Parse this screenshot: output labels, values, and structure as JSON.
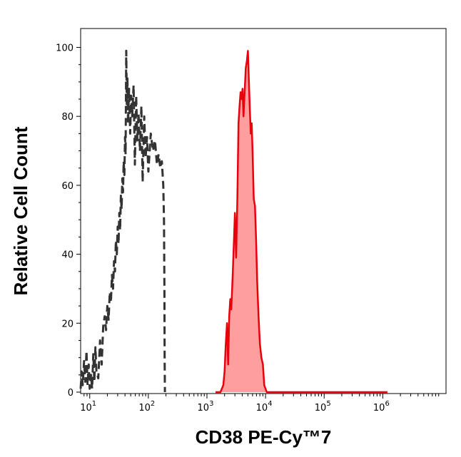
{
  "chart_data": {
    "type": "area",
    "xlabel": "CD38 PE-Cy™7",
    "ylabel": "Relative Cell Count",
    "x_scale": "log",
    "xlim": [
      7,
      12000000
    ],
    "ylim": [
      0,
      103
    ],
    "x_ticks": [
      {
        "value": 10,
        "base": "10",
        "exp": "1"
      },
      {
        "value": 100,
        "base": "10",
        "exp": "2"
      },
      {
        "value": 1000,
        "base": "10",
        "exp": "3"
      },
      {
        "value": 10000,
        "base": "10",
        "exp": "4"
      },
      {
        "value": 100000,
        "base": "10",
        "exp": "5"
      },
      {
        "value": 1000000,
        "base": "10",
        "exp": "6"
      }
    ],
    "y_ticks": [
      "0",
      "20",
      "40",
      "60",
      "80",
      "100"
    ],
    "y_tick_values": [
      0,
      20,
      40,
      60,
      80,
      100
    ],
    "grid": false,
    "legend": "none",
    "series": [
      {
        "style": "dashed",
        "color": "#333333",
        "points": [
          [
            7,
            1
          ],
          [
            7.3,
            6
          ],
          [
            7.6,
            2
          ],
          [
            8,
            9
          ],
          [
            8.4,
            3
          ],
          [
            8.8,
            12
          ],
          [
            9.2,
            2
          ],
          [
            9.6,
            8
          ],
          [
            10,
            1
          ],
          [
            10.5,
            5
          ],
          [
            11,
            1
          ],
          [
            11.5,
            11
          ],
          [
            12,
            3
          ],
          [
            12.5,
            13
          ],
          [
            13,
            6
          ],
          [
            14,
            4
          ],
          [
            15,
            15
          ],
          [
            16,
            8
          ],
          [
            17,
            19
          ],
          [
            18,
            22
          ],
          [
            19,
            18
          ],
          [
            20,
            25
          ],
          [
            21,
            21
          ],
          [
            22,
            29
          ],
          [
            23,
            26
          ],
          [
            24,
            34
          ],
          [
            25,
            30
          ],
          [
            26,
            38
          ],
          [
            27,
            35
          ],
          [
            28,
            44
          ],
          [
            29,
            40
          ],
          [
            30,
            48
          ],
          [
            31,
            43
          ],
          [
            32,
            52
          ],
          [
            33,
            47
          ],
          [
            34,
            57
          ],
          [
            35,
            53
          ],
          [
            36,
            62
          ],
          [
            37,
            58
          ],
          [
            38,
            67
          ],
          [
            39,
            63
          ],
          [
            40,
            74
          ],
          [
            41,
            69
          ],
          [
            42,
            99
          ],
          [
            43,
            83
          ],
          [
            44,
            91
          ],
          [
            45,
            78
          ],
          [
            47,
            88
          ],
          [
            49,
            75
          ],
          [
            51,
            86
          ],
          [
            53,
            80
          ],
          [
            56,
            89
          ],
          [
            59,
            66
          ],
          [
            62,
            86
          ],
          [
            65,
            73
          ],
          [
            68,
            81
          ],
          [
            72,
            70
          ],
          [
            76,
            83
          ],
          [
            80,
            61
          ],
          [
            85,
            80
          ],
          [
            90,
            68
          ],
          [
            95,
            74
          ],
          [
            100,
            64
          ],
          [
            110,
            75
          ],
          [
            120,
            70
          ],
          [
            130,
            73
          ],
          [
            140,
            66
          ],
          [
            150,
            69
          ],
          [
            160,
            65
          ],
          [
            170,
            67
          ],
          [
            180,
            60
          ],
          [
            185,
            50
          ],
          [
            188,
            30
          ],
          [
            190,
            10
          ],
          [
            192,
            0
          ]
        ]
      },
      {
        "style": "solid-filled",
        "color": "#e8000b",
        "fill": "#ff9e9e",
        "points": [
          [
            1400,
            0
          ],
          [
            1700,
            0
          ],
          [
            1900,
            2
          ],
          [
            2000,
            6
          ],
          [
            2100,
            14
          ],
          [
            2200,
            20
          ],
          [
            2300,
            8
          ],
          [
            2400,
            22
          ],
          [
            2500,
            27
          ],
          [
            2600,
            24
          ],
          [
            2750,
            34
          ],
          [
            2900,
            45
          ],
          [
            3000,
            52
          ],
          [
            3150,
            39
          ],
          [
            3300,
            56
          ],
          [
            3450,
            78
          ],
          [
            3600,
            83
          ],
          [
            3750,
            87
          ],
          [
            3900,
            85
          ],
          [
            4050,
            88
          ],
          [
            4200,
            80
          ],
          [
            4400,
            87
          ],
          [
            4600,
            94
          ],
          [
            4800,
            96
          ],
          [
            5000,
            99
          ],
          [
            5200,
            90
          ],
          [
            5400,
            82
          ],
          [
            5600,
            75
          ],
          [
            5800,
            78
          ],
          [
            6000,
            70
          ],
          [
            6300,
            56
          ],
          [
            6600,
            54
          ],
          [
            6900,
            44
          ],
          [
            7200,
            32
          ],
          [
            7600,
            22
          ],
          [
            8000,
            14
          ],
          [
            8500,
            10
          ],
          [
            9000,
            8
          ],
          [
            9500,
            2
          ],
          [
            10500,
            0
          ],
          [
            20000,
            0
          ],
          [
            100000,
            0
          ],
          [
            1000000,
            0
          ],
          [
            1200000,
            0
          ]
        ]
      }
    ]
  }
}
